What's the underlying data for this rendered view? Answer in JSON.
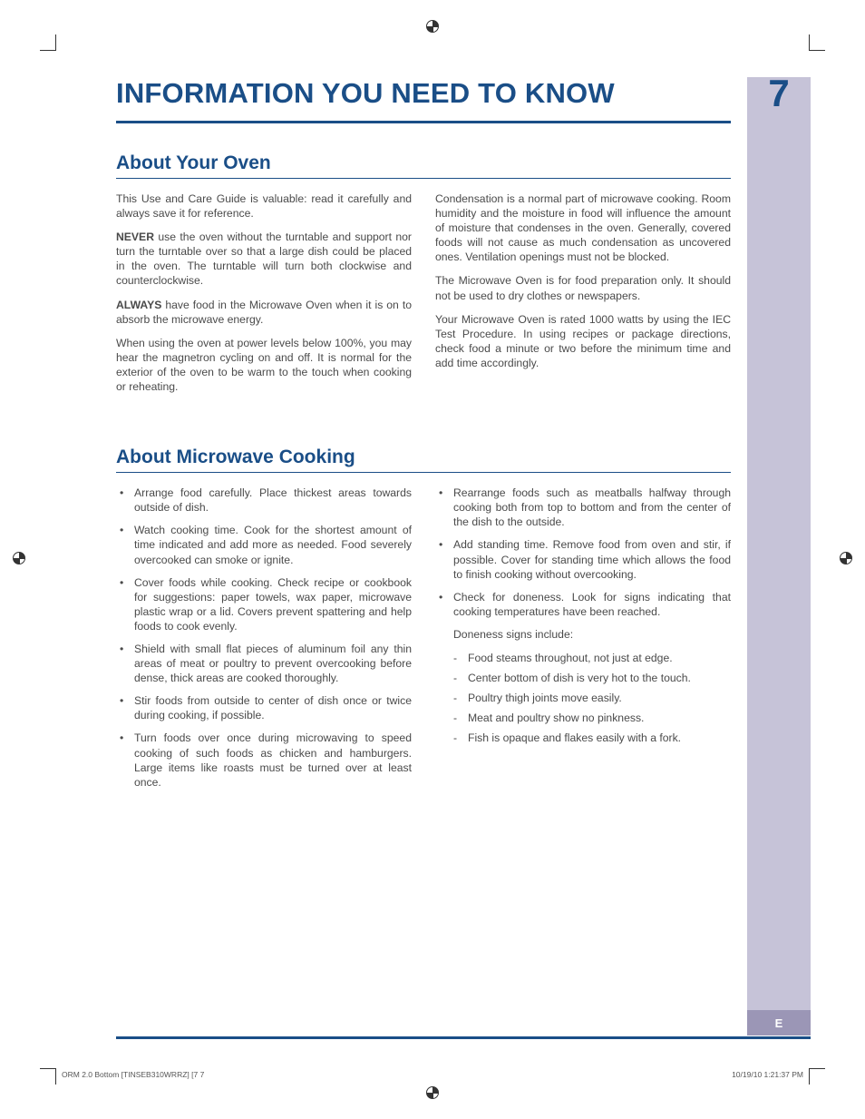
{
  "colors": {
    "brand": "#1a4e87",
    "sidebar_fill": "#c6c3d8",
    "sidebar_e_bg": "#9b96b6",
    "sidebar_e_text": "#ffffff",
    "text": "#4a4a4a"
  },
  "header": {
    "title": "INFORMATION YOU NEED TO KNOW",
    "page_number": "7"
  },
  "section1": {
    "title": "About Your Oven",
    "left_paragraphs": [
      "This Use and Care Guide is valuable: read it carefully and always save it for reference.",
      "<strong>NEVER</strong> use the oven without the turntable and support nor turn the turntable over so that a large dish could be placed in the oven. The turntable will turn both clockwise and counterclockwise.",
      "<strong>ALWAYS</strong> have food in the Microwave Oven when it is on to absorb the microwave energy.",
      "When using the oven at power levels below 100%, you may hear the magnetron cycling on and off. It is normal for the exterior of the oven to be warm to the touch when cooking or reheating."
    ],
    "right_paragraphs": [
      "Condensation is a normal part of microwave cooking. Room humidity and the moisture in food will influence the amount of moisture that condenses in the oven. Generally, covered foods will not cause as much condensation as uncovered ones. Ventilation openings must not be blocked.",
      "The Microwave Oven is for food preparation only. It should not be used to dry clothes or newspapers.",
      "Your Microwave Oven is rated 1000 watts by using the IEC Test Procedure. In using recipes or package directions, check food a minute or two before the minimum time and add time accordingly."
    ]
  },
  "section2": {
    "title": "About Microwave Cooking",
    "left_bullets": [
      "Arrange food carefully. Place thickest areas towards outside of dish.",
      "Watch cooking time. Cook for the shortest amount of time indicated and add more as needed. Food severely overcooked can smoke or ignite.",
      "Cover foods while cooking. Check recipe or cookbook for suggestions: paper towels, wax paper, microwave plastic wrap or a lid. Covers prevent spattering and help foods to cook evenly.",
      "Shield with small flat pieces of aluminum foil any thin areas of meat or poultry to prevent overcooking before dense, thick areas are cooked thoroughly.",
      "Stir foods from outside to center of dish once or twice during cooking, if possible.",
      "Turn foods over once during microwaving to speed cooking of such foods as chicken and hamburgers. Large items like roasts must be turned over at least once."
    ],
    "right_bullets": [
      "Rearrange foods such as meatballs halfway through cooking both from top to bottom and from the center of the dish to the outside.",
      "Add standing time. Remove food from oven and stir, if possible. Cover for standing time which allows the food to finish cooking without overcooking.",
      "Check for doneness. Look for signs indicating that cooking temperatures have been reached."
    ],
    "doneness_intro": "Doneness signs include:",
    "doneness_items": [
      "Food steams throughout, not just at edge.",
      "Center bottom of dish is very hot to the touch.",
      "Poultry thigh joints move easily.",
      "Meat and poultry show no pinkness.",
      "Fish is opaque and flakes easily with a fork."
    ]
  },
  "sidebar": {
    "letter": "E"
  },
  "footer": {
    "left": "ORM 2.0 Bottom [TINSEB310WRRZ] [7   7",
    "right": "10/19/10   1:21:37 PM"
  }
}
